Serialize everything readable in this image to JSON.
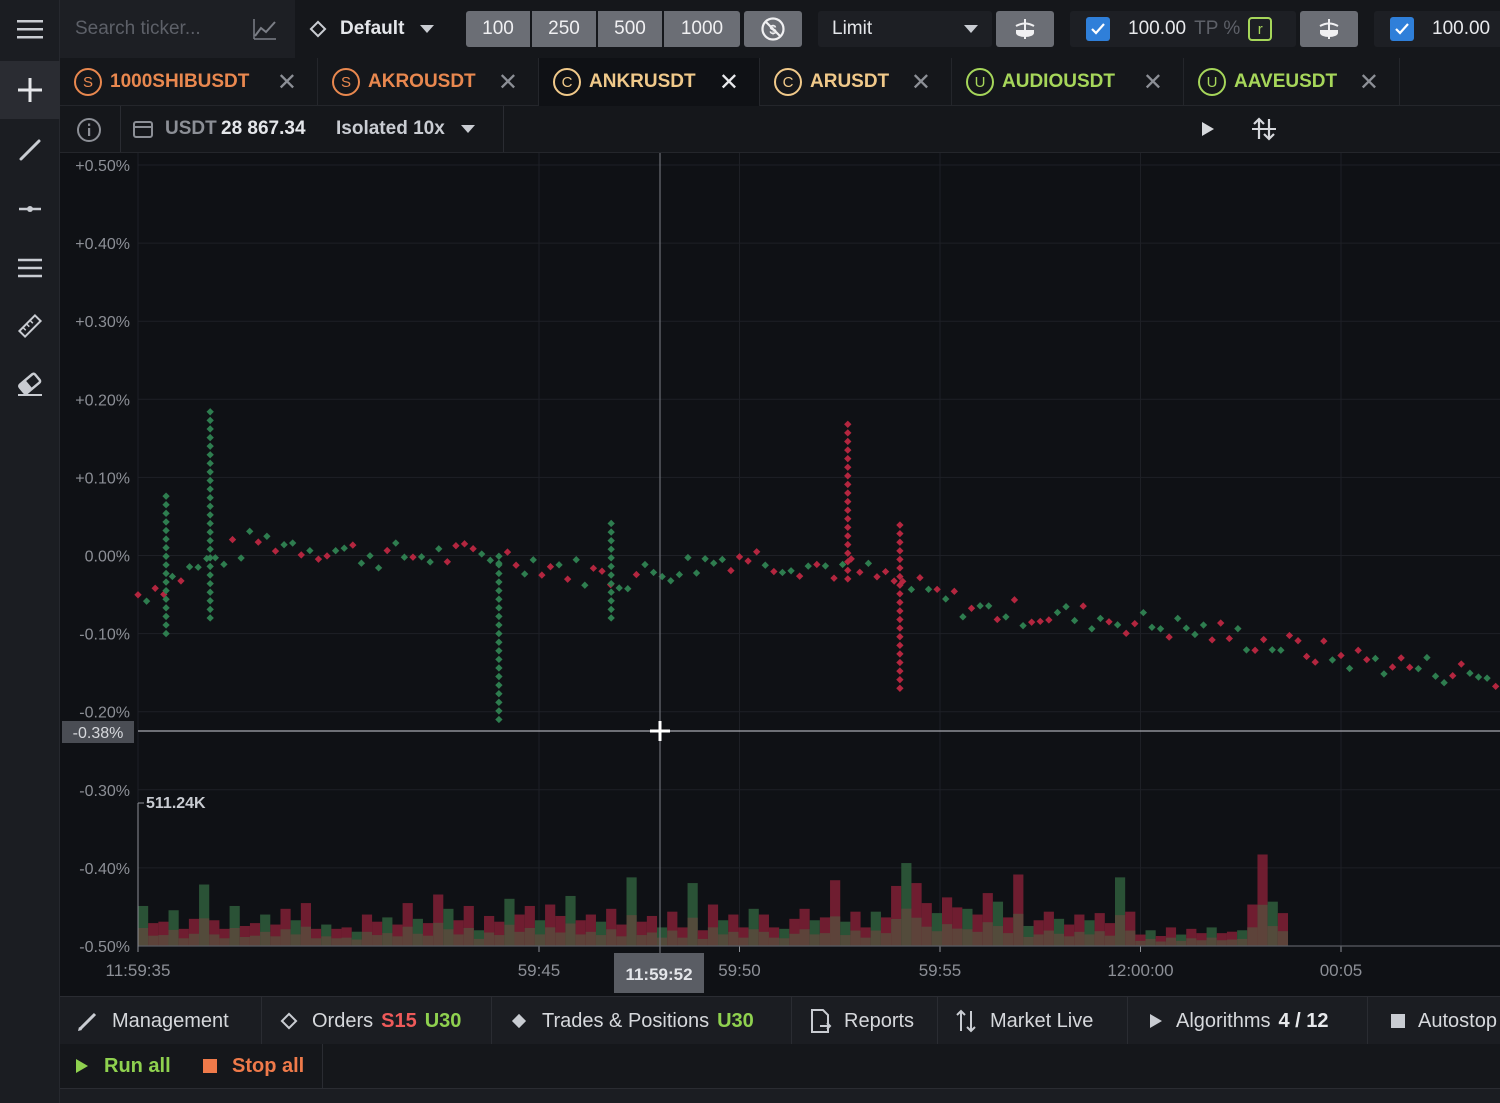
{
  "toolbar": {
    "search_placeholder": "Search ticker...",
    "layout_label": "Default",
    "volume_presets": [
      "100",
      "250",
      "500",
      "1000"
    ],
    "order_type": "Limit",
    "tp_value": "100.00",
    "tp_label": "TP %",
    "tp_tag": "r",
    "second_value": "100.00"
  },
  "tabs": [
    {
      "badge": "S",
      "symbol": "1000SHIBUSDT",
      "color": "#e9884f",
      "active": false
    },
    {
      "badge": "S",
      "symbol": "AKROUSDT",
      "color": "#e9884f",
      "active": false
    },
    {
      "badge": "C",
      "symbol": "ANKRUSDT",
      "color": "#f0c98a",
      "active": true
    },
    {
      "badge": "C",
      "symbol": "ARUSDT",
      "color": "#f0c98a",
      "active": false
    },
    {
      "badge": "U",
      "symbol": "AUDIOUSDT",
      "color": "#a6d65a",
      "active": false
    },
    {
      "badge": "U",
      "symbol": "AAVEUSDT",
      "color": "#a6d65a",
      "active": false
    }
  ],
  "info": {
    "currency": "USDT",
    "balance": "28 867.34",
    "margin": "Isolated 10x"
  },
  "colors": {
    "buy": "#2e7d4f",
    "sell": "#b3263f",
    "volume_buy": "#2e5a3a",
    "volume_sell": "#7a1f33"
  },
  "chart_data": {
    "type": "scatter",
    "y_ticks": [
      "+0.50%",
      "+0.40%",
      "+0.30%",
      "+0.20%",
      "+0.10%",
      "0.00%",
      "-0.10%",
      "-0.20%",
      "-0.30%",
      "-0.40%",
      "-0.50%"
    ],
    "ylim": [
      -0.5,
      0.5
    ],
    "x_ticks": [
      "11:59:35",
      "59:45",
      "59:50",
      "59:55",
      "12:00:00",
      "00:05",
      "00:10"
    ],
    "crosshair_price": "-0.38%",
    "crosshair_time": "11:59:52",
    "volume_max_label": "511.24K",
    "price_path": [
      [
        0,
        -0.05
      ],
      [
        3,
        0.02
      ],
      [
        6,
        0.0
      ],
      [
        9,
        0.0
      ],
      [
        12,
        -0.03
      ],
      [
        15,
        0.0
      ],
      [
        18,
        -0.02
      ],
      [
        21,
        -0.07
      ],
      [
        24,
        -0.08
      ],
      [
        27,
        -0.1
      ],
      [
        30,
        -0.13
      ],
      [
        33,
        -0.15
      ],
      [
        36,
        -0.18
      ],
      [
        39,
        -0.2
      ],
      [
        42,
        -0.15
      ],
      [
        45,
        -0.14
      ],
      [
        48,
        -0.16
      ],
      [
        51,
        -0.17
      ],
      [
        54,
        -0.22
      ],
      [
        57,
        -0.23
      ],
      [
        60,
        -0.21
      ],
      [
        63,
        -0.22
      ],
      [
        66,
        -0.2
      ],
      [
        69,
        -0.18
      ],
      [
        72,
        -0.08
      ],
      [
        75,
        -0.03
      ],
      [
        78,
        -0.02
      ],
      [
        81,
        -0.01
      ],
      [
        84,
        0.03
      ],
      [
        87,
        0.12
      ],
      [
        90,
        0.11
      ],
      [
        93,
        0.08
      ],
      [
        96,
        0.16
      ],
      [
        99,
        0.19
      ],
      [
        102,
        0.24
      ],
      [
        105,
        0.36
      ],
      [
        108,
        0.4
      ],
      [
        111,
        0.38
      ],
      [
        114,
        0.42
      ]
    ],
    "spikes": [
      {
        "t": 0.7,
        "lo": -0.1,
        "hi": 0.08
      },
      {
        "t": 1.8,
        "lo": -0.08,
        "hi": 0.19
      },
      {
        "t": 9.0,
        "lo": -0.21,
        "hi": 0.0
      },
      {
        "t": 11.8,
        "lo": -0.08,
        "hi": 0.05
      },
      {
        "t": 17.7,
        "lo": -0.03,
        "hi": 0.17
      },
      {
        "t": 19.0,
        "lo": -0.17,
        "hi": 0.04
      },
      {
        "t": 37.7,
        "lo": -0.14,
        "hi": -0.04
      },
      {
        "t": 39.8,
        "lo": -0.28,
        "hi": -0.13
      },
      {
        "t": 42.8,
        "lo": -0.35,
        "hi": -0.13
      },
      {
        "t": 56.0,
        "lo": -0.43,
        "hi": -0.23
      },
      {
        "t": 60.0,
        "lo": -0.22,
        "hi": -0.03
      },
      {
        "t": 65.2,
        "lo": -0.32,
        "hi": -0.1
      },
      {
        "t": 88.7,
        "lo": 0.1,
        "hi": 0.44
      },
      {
        "t": 91.3,
        "lo": -0.03,
        "hi": 0.13
      },
      {
        "t": 98.0,
        "lo": -0.12,
        "hi": 0.2
      }
    ],
    "volume": [
      0.28,
      0.16,
      0.17,
      0.25,
      0.12,
      0.19,
      0.43,
      0.18,
      0.12,
      0.28,
      0.14,
      0.16,
      0.22,
      0.15,
      0.26,
      0.18,
      0.3,
      0.12,
      0.15,
      0.12,
      0.13,
      0.1,
      0.22,
      0.17,
      0.2,
      0.15,
      0.3,
      0.19,
      0.16,
      0.36,
      0.26,
      0.18,
      0.28,
      0.11,
      0.21,
      0.17,
      0.33,
      0.22,
      0.28,
      0.18,
      0.29,
      0.21,
      0.35,
      0.18,
      0.22,
      0.17,
      0.26,
      0.15,
      0.48,
      0.17,
      0.21,
      0.13,
      0.24,
      0.13,
      0.44,
      0.11,
      0.29,
      0.18,
      0.22,
      0.13,
      0.26,
      0.22,
      0.13,
      0.12,
      0.19,
      0.26,
      0.18,
      0.2,
      0.46,
      0.17,
      0.24,
      0.13,
      0.24,
      0.2,
      0.42,
      0.58,
      0.44,
      0.3,
      0.23,
      0.34,
      0.27,
      0.26,
      0.22,
      0.37,
      0.31,
      0.2,
      0.5,
      0.14,
      0.18,
      0.24,
      0.19,
      0.15,
      0.22,
      0.18,
      0.23,
      0.16,
      0.48,
      0.24,
      0.08,
      0.11,
      0.07,
      0.13,
      0.08,
      0.12,
      0.09,
      0.13,
      0.09,
      0.1,
      0.11,
      0.29,
      0.64,
      0.31,
      0.23
    ]
  },
  "bottom_tabs": {
    "management": "Management",
    "orders": "Orders",
    "orders_s": "S15",
    "orders_u": "U30",
    "trades": "Trades & Positions",
    "trades_u": "U30",
    "reports": "Reports",
    "market_live": "Market Live",
    "algorithms": "Algorithms",
    "algorithms_count": "4 / 12",
    "autostop": "Autostop"
  },
  "actions": {
    "run_all": "Run all",
    "stop_all": "Stop all"
  }
}
